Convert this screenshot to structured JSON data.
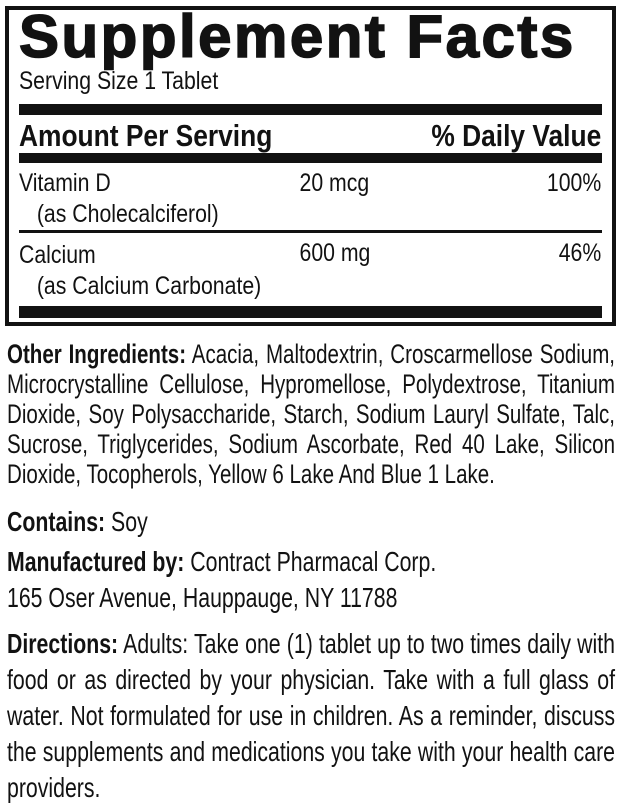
{
  "colors": {
    "ink": "#121212",
    "paper": "#ffffff"
  },
  "panel": {
    "title": "Supplement Facts",
    "serving_size": "Serving Size 1 Tablet",
    "header": {
      "amount_per_serving": "Amount Per Serving",
      "daily_value": "% Daily Value"
    },
    "nutrients": [
      {
        "name": "Vitamin D",
        "detail": "(as Cholecalciferol)",
        "amount": "20 mcg",
        "daily_value": "100%"
      },
      {
        "name": "Calcium",
        "detail": "(as Calcium Carbonate)",
        "amount": "600 mg",
        "daily_value": "46%"
      }
    ]
  },
  "sections": {
    "other_ingredients": {
      "label": "Other Ingredients:",
      "text": "Acacia, Maltodextrin, Croscarmellose Sodium, Microcrystalline Cellulose, Hypromellose, Polydextrose, Titanium Dioxide, Soy Polysaccharide, Starch, Sodium Lauryl Sulfate, Talc, Sucrose, Triglycerides, Sodium Ascorbate, Red 40 Lake, Silicon Dioxide, Tocopherols, Yellow 6 Lake And Blue 1 Lake."
    },
    "contains": {
      "label": "Contains:",
      "text": "Soy"
    },
    "manufacturer": {
      "label": "Manufactured by:",
      "name": "Contract Pharmacal Corp.",
      "address": "165 Oser Avenue, Hauppauge, NY 11788"
    },
    "directions": {
      "label": "Directions:",
      "text": "Adults: Take one (1) tablet up to two times daily with food or as directed by your physician. Take with a full glass of water. Not formulated for use in children. As a reminder, discuss the supplements and medications you take with your health care providers."
    }
  }
}
